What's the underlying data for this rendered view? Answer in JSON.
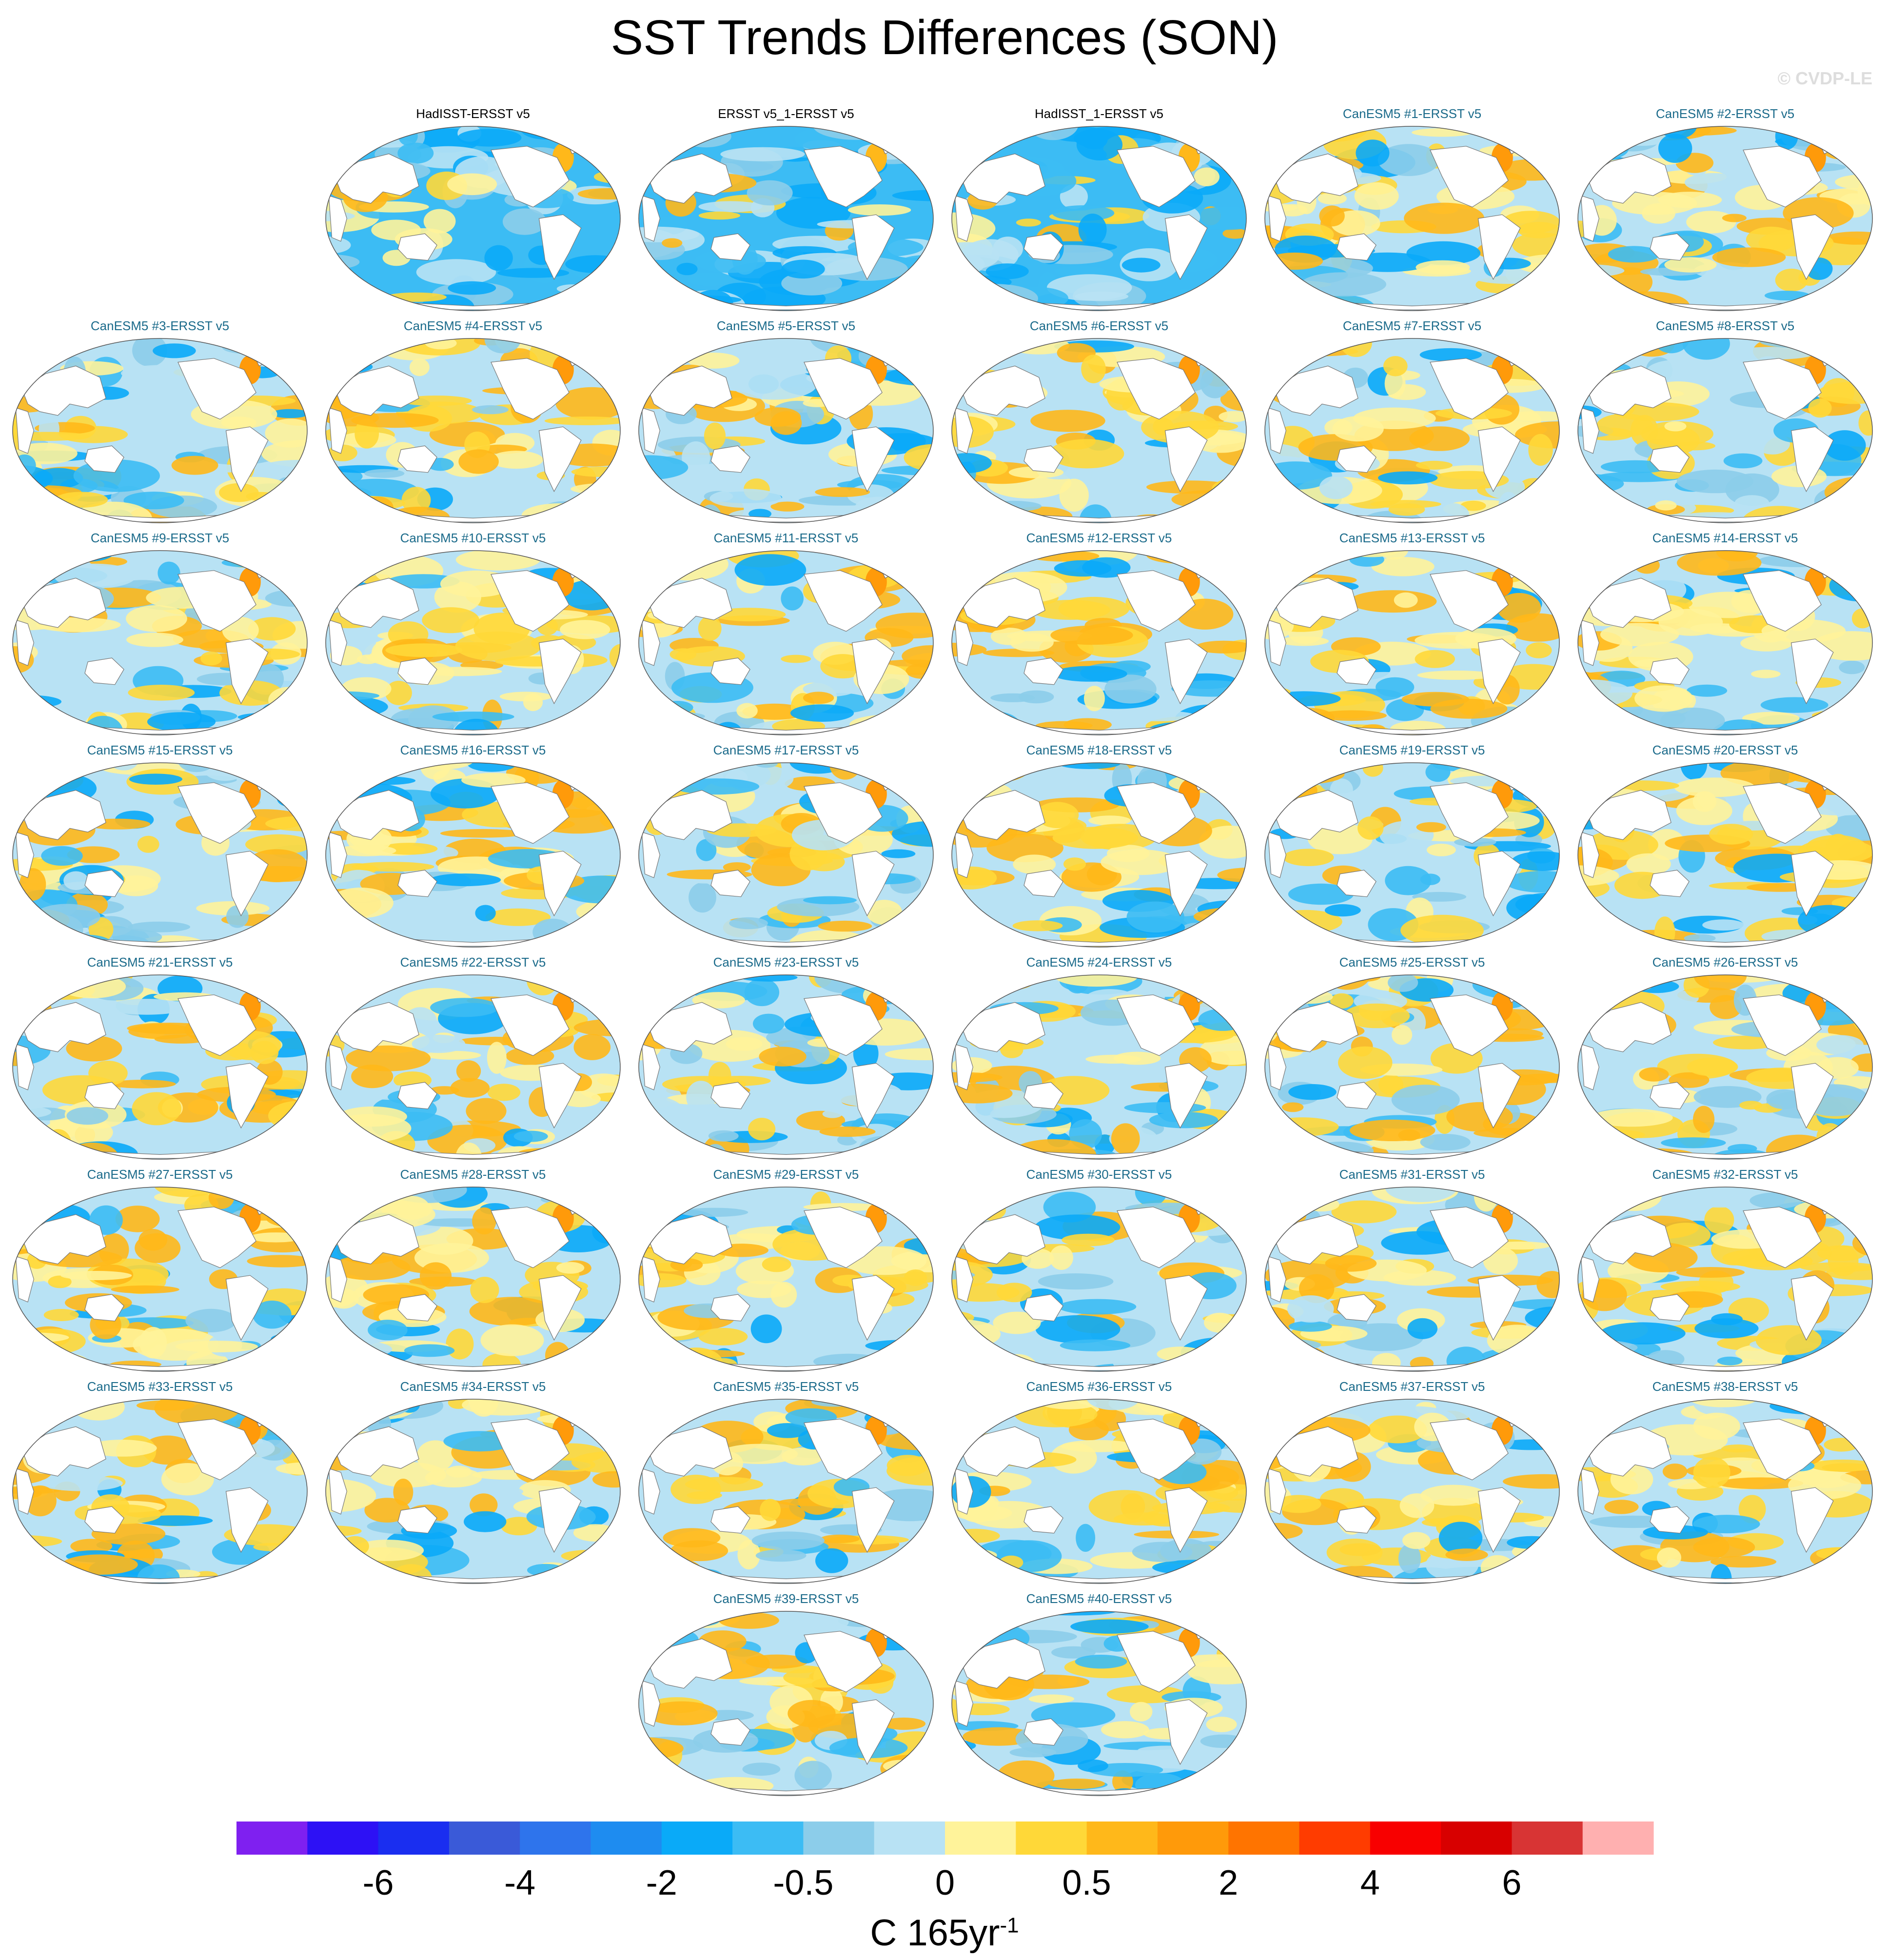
{
  "title": "SST Trends Differences (SON)",
  "watermark": "© CVDP-LE",
  "colorbar": {
    "tick_labels": [
      "-6",
      "-4",
      "-2",
      "-0.5",
      "0",
      "0.5",
      "2",
      "4",
      "6"
    ],
    "units_base": "C 165yr",
    "units_exp": "-1",
    "colors": [
      "#7f20f0",
      "#2d11f5",
      "#1a2ef0",
      "#3a5ad8",
      "#2e74ec",
      "#1e8cf0",
      "#0aaaf8",
      "#3cbcf4",
      "#8ccdea",
      "#b8e2f4",
      "#fff39a",
      "#ffd838",
      "#ffb81a",
      "#ff9a0a",
      "#ff7400",
      "#ff3c00",
      "#f80000",
      "#d80000",
      "#d83434",
      "#ffb0b0"
    ]
  },
  "chart_data": {
    "type": "heatmap",
    "title": "SST Trends Differences (SON)",
    "units": "C 165yr-1",
    "color_levels": [
      -7,
      -6,
      -5,
      -4,
      -3,
      -2,
      -1,
      -0.5,
      -0.25,
      0,
      0.25,
      0.5,
      1,
      2,
      3,
      4,
      5,
      6,
      7
    ],
    "colorbar_ticks": [
      -6,
      -4,
      -2,
      -0.5,
      0,
      0.5,
      2,
      4,
      6
    ],
    "panels": [
      {
        "label": "HadISST-ERSST v5",
        "kind": "obs",
        "dominant": "cool"
      },
      {
        "label": "ERSST v5_1-ERSST v5",
        "kind": "obs",
        "dominant": "cool"
      },
      {
        "label": "HadISST_1-ERSST v5",
        "kind": "obs",
        "dominant": "cool"
      },
      {
        "label": "CanESM5 #1-ERSST v5",
        "kind": "model",
        "dominant": "warm"
      },
      {
        "label": "CanESM5 #2-ERSST v5",
        "kind": "model",
        "dominant": "warm"
      },
      {
        "label": "CanESM5 #3-ERSST v5",
        "kind": "model",
        "dominant": "mixed"
      },
      {
        "label": "CanESM5 #4-ERSST v5",
        "kind": "model",
        "dominant": "warm"
      },
      {
        "label": "CanESM5 #5-ERSST v5",
        "kind": "model",
        "dominant": "mixed"
      },
      {
        "label": "CanESM5 #6-ERSST v5",
        "kind": "model",
        "dominant": "warm"
      },
      {
        "label": "CanESM5 #7-ERSST v5",
        "kind": "model",
        "dominant": "warm"
      },
      {
        "label": "CanESM5 #8-ERSST v5",
        "kind": "model",
        "dominant": "mixed"
      },
      {
        "label": "CanESM5 #9-ERSST v5",
        "kind": "model",
        "dominant": "warm"
      },
      {
        "label": "CanESM5 #10-ERSST v5",
        "kind": "model",
        "dominant": "warm"
      },
      {
        "label": "CanESM5 #11-ERSST v5",
        "kind": "model",
        "dominant": "warm"
      },
      {
        "label": "CanESM5 #12-ERSST v5",
        "kind": "model",
        "dominant": "warm"
      },
      {
        "label": "CanESM5 #13-ERSST v5",
        "kind": "model",
        "dominant": "warm"
      },
      {
        "label": "CanESM5 #14-ERSST v5",
        "kind": "model",
        "dominant": "warm"
      },
      {
        "label": "CanESM5 #15-ERSST v5",
        "kind": "model",
        "dominant": "mixed"
      },
      {
        "label": "CanESM5 #16-ERSST v5",
        "kind": "model",
        "dominant": "warm"
      },
      {
        "label": "CanESM5 #17-ERSST v5",
        "kind": "model",
        "dominant": "mixed"
      },
      {
        "label": "CanESM5 #18-ERSST v5",
        "kind": "model",
        "dominant": "warm"
      },
      {
        "label": "CanESM5 #19-ERSST v5",
        "kind": "model",
        "dominant": "mixed"
      },
      {
        "label": "CanESM5 #20-ERSST v5",
        "kind": "model",
        "dominant": "warm"
      },
      {
        "label": "CanESM5 #21-ERSST v5",
        "kind": "model",
        "dominant": "warm"
      },
      {
        "label": "CanESM5 #22-ERSST v5",
        "kind": "model",
        "dominant": "warm"
      },
      {
        "label": "CanESM5 #23-ERSST v5",
        "kind": "model",
        "dominant": "mixed"
      },
      {
        "label": "CanESM5 #24-ERSST v5",
        "kind": "model",
        "dominant": "mixed"
      },
      {
        "label": "CanESM5 #25-ERSST v5",
        "kind": "model",
        "dominant": "warm"
      },
      {
        "label": "CanESM5 #26-ERSST v5",
        "kind": "model",
        "dominant": "warm"
      },
      {
        "label": "CanESM5 #27-ERSST v5",
        "kind": "model",
        "dominant": "warm"
      },
      {
        "label": "CanESM5 #28-ERSST v5",
        "kind": "model",
        "dominant": "warm"
      },
      {
        "label": "CanESM5 #29-ERSST v5",
        "kind": "model",
        "dominant": "warm"
      },
      {
        "label": "CanESM5 #30-ERSST v5",
        "kind": "model",
        "dominant": "mixed"
      },
      {
        "label": "CanESM5 #31-ERSST v5",
        "kind": "model",
        "dominant": "warm"
      },
      {
        "label": "CanESM5 #32-ERSST v5",
        "kind": "model",
        "dominant": "warm"
      },
      {
        "label": "CanESM5 #33-ERSST v5",
        "kind": "model",
        "dominant": "warm"
      },
      {
        "label": "CanESM5 #34-ERSST v5",
        "kind": "model",
        "dominant": "warm"
      },
      {
        "label": "CanESM5 #35-ERSST v5",
        "kind": "model",
        "dominant": "mixed"
      },
      {
        "label": "CanESM5 #36-ERSST v5",
        "kind": "model",
        "dominant": "warm"
      },
      {
        "label": "CanESM5 #37-ERSST v5",
        "kind": "model",
        "dominant": "warm"
      },
      {
        "label": "CanESM5 #38-ERSST v5",
        "kind": "model",
        "dominant": "warm"
      },
      {
        "label": "CanESM5 #39-ERSST v5",
        "kind": "model",
        "dominant": "warm"
      },
      {
        "label": "CanESM5 #40-ERSST v5",
        "kind": "model",
        "dominant": "mixed"
      }
    ]
  }
}
